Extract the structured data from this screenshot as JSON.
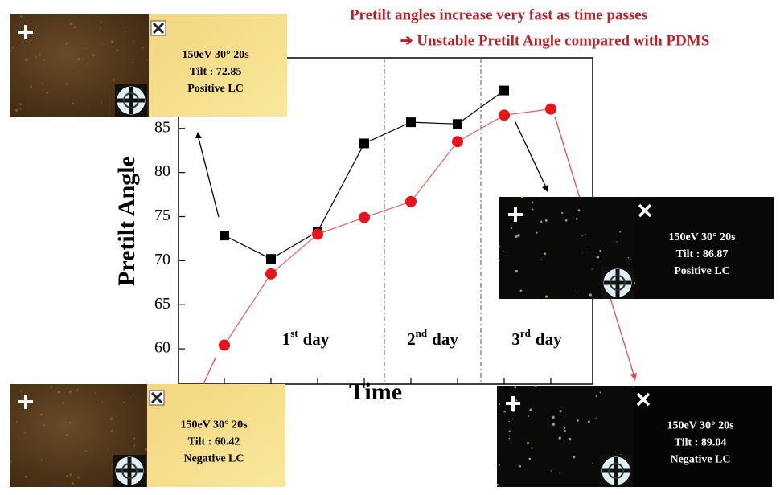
{
  "chart_data": {
    "type": "line",
    "annotations": [
      "Pretilt angles increase very fast as time passes",
      "➔ Unstable Pretilt Angle compared with PDMS"
    ],
    "xlabel": "Time",
    "ylabel": "Pretilt Angle",
    "categories": [
      null,
      null,
      null,
      null,
      null,
      null,
      null,
      null
    ],
    "series": [
      {
        "color": "#000000",
        "marker": "square",
        "values": [
          72.85,
          70.2,
          73.3,
          83.3,
          85.7,
          85.5,
          89.3,
          null
        ]
      },
      {
        "color": "#e8141c",
        "marker": "circle",
        "values": [
          60.42,
          68.5,
          73.0,
          74.9,
          76.7,
          83.5,
          86.5,
          87.2
        ]
      }
    ],
    "ylim": [
      56,
      93
    ],
    "yticks": [
      60,
      65,
      70,
      75,
      80,
      85
    ],
    "periods": [
      {
        "ordinal": "1",
        "suffix": "st",
        "label": "day"
      },
      {
        "ordinal": "2",
        "suffix": "nd",
        "label": "day"
      },
      {
        "ordinal": "3",
        "suffix": "rd",
        "label": "day"
      }
    ],
    "insets": [
      {
        "lines": [
          "150eV 30° 20s",
          "Tilt : 72.85",
          "Positive LC"
        ]
      },
      {
        "lines": [
          "150eV 30° 20s",
          "Tilt : 60.42",
          "Negative LC"
        ]
      },
      {
        "lines": [
          "150eV 30° 20s",
          "Tilt : 86.87",
          "Positive LC"
        ]
      },
      {
        "lines": [
          "150eV 30° 20s",
          "Tilt : 89.04",
          "Negative LC"
        ]
      }
    ]
  }
}
